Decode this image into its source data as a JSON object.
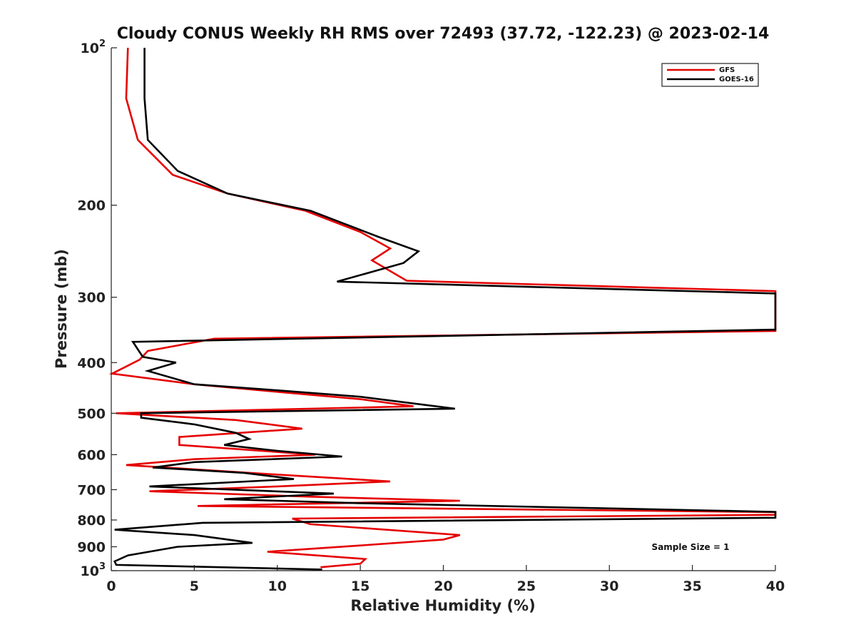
{
  "chart_data": {
    "type": "line",
    "title": "Cloudy CONUS Weekly RH RMS over 72493 (37.72, -122.23) @ 2023-02-14",
    "xlabel": "Relative Humidity (%)",
    "ylabel": "Pressure (mb)",
    "xlim": [
      0,
      40
    ],
    "ylim": [
      100,
      1000
    ],
    "y_scale": "log",
    "y_reversed": true,
    "x_ticks": [
      0,
      5,
      10,
      15,
      20,
      25,
      30,
      35,
      40
    ],
    "x_tick_labels": [
      "0",
      "5",
      "10",
      "15",
      "20",
      "25",
      "30",
      "35",
      "40"
    ],
    "y_ticks": [
      100,
      200,
      300,
      400,
      500,
      600,
      700,
      800,
      900,
      1000
    ],
    "y_tick_labels": [
      {
        "base": "10",
        "exp": "2"
      },
      {
        "base": "200",
        "exp": ""
      },
      {
        "base": "300",
        "exp": ""
      },
      {
        "base": "400",
        "exp": ""
      },
      {
        "base": "500",
        "exp": ""
      },
      {
        "base": "600",
        "exp": ""
      },
      {
        "base": "700",
        "exp": ""
      },
      {
        "base": "800",
        "exp": ""
      },
      {
        "base": "900",
        "exp": ""
      },
      {
        "base": "10",
        "exp": "3"
      }
    ],
    "grid": false,
    "legend_position": "top-right",
    "annotation": "Sample Size = 1",
    "series": [
      {
        "name": "GFS",
        "color": "#e60000",
        "points": [
          [
            1.0,
            100
          ],
          [
            0.9,
            125
          ],
          [
            1.6,
            150
          ],
          [
            3.7,
            175
          ],
          [
            7.0,
            190
          ],
          [
            11.7,
            205
          ],
          [
            15.0,
            225
          ],
          [
            16.8,
            242
          ],
          [
            15.7,
            255
          ],
          [
            17.8,
            279
          ],
          [
            40,
            292
          ],
          [
            40,
            348
          ],
          [
            6.2,
            360
          ],
          [
            2.2,
            380
          ],
          [
            1.7,
            395
          ],
          [
            0.05,
            420
          ],
          [
            5.0,
            440
          ],
          [
            10.0,
            455
          ],
          [
            15.0,
            470
          ],
          [
            18.2,
            485
          ],
          [
            0.3,
            500
          ],
          [
            7.5,
            515
          ],
          [
            11.5,
            535
          ],
          [
            4.1,
            555
          ],
          [
            4.1,
            575
          ],
          [
            12.3,
            600
          ],
          [
            5.0,
            612
          ],
          [
            0.9,
            628
          ],
          [
            5.0,
            640
          ],
          [
            10.0,
            655
          ],
          [
            16.8,
            675
          ],
          [
            10.0,
            690
          ],
          [
            2.3,
            705
          ],
          [
            12.0,
            722
          ],
          [
            21.0,
            735
          ],
          [
            5.2,
            752
          ],
          [
            40,
            773
          ],
          [
            40,
            782
          ],
          [
            10.9,
            795
          ],
          [
            12.0,
            815
          ],
          [
            21.0,
            855
          ],
          [
            20.0,
            872
          ],
          [
            15.0,
            895
          ],
          [
            9.4,
            920
          ],
          [
            15.3,
            950
          ],
          [
            15.0,
            970
          ],
          [
            12.6,
            985
          ]
        ]
      },
      {
        "name": "GOES-16",
        "color": "#000000",
        "points": [
          [
            2.0,
            100
          ],
          [
            2.0,
            125
          ],
          [
            2.2,
            150
          ],
          [
            4.0,
            172
          ],
          [
            7.0,
            190
          ],
          [
            12.0,
            205
          ],
          [
            16.1,
            230
          ],
          [
            18.5,
            245
          ],
          [
            17.6,
            258
          ],
          [
            13.6,
            280
          ],
          [
            40,
            295
          ],
          [
            40,
            346
          ],
          [
            1.3,
            365
          ],
          [
            1.9,
            390
          ],
          [
            3.9,
            400
          ],
          [
            2.2,
            415
          ],
          [
            5.0,
            440
          ],
          [
            10.0,
            452
          ],
          [
            15.0,
            465
          ],
          [
            20.7,
            490
          ],
          [
            1.8,
            500
          ],
          [
            1.8,
            510
          ],
          [
            5.0,
            525
          ],
          [
            7.5,
            545
          ],
          [
            8.3,
            560
          ],
          [
            6.8,
            575
          ],
          [
            10.0,
            590
          ],
          [
            13.9,
            605
          ],
          [
            5.0,
            620
          ],
          [
            2.5,
            635
          ],
          [
            8.0,
            650
          ],
          [
            11.0,
            668
          ],
          [
            2.3,
            690
          ],
          [
            13.4,
            712
          ],
          [
            6.8,
            730
          ],
          [
            15.0,
            743
          ],
          [
            40,
            772
          ],
          [
            40,
            792
          ],
          [
            5.5,
            810
          ],
          [
            0.2,
            835
          ],
          [
            5.0,
            855
          ],
          [
            8.5,
            885
          ],
          [
            4.0,
            900
          ],
          [
            1.0,
            935
          ],
          [
            0.2,
            960
          ],
          [
            0.3,
            975
          ],
          [
            12.7,
            995
          ]
        ]
      }
    ]
  }
}
